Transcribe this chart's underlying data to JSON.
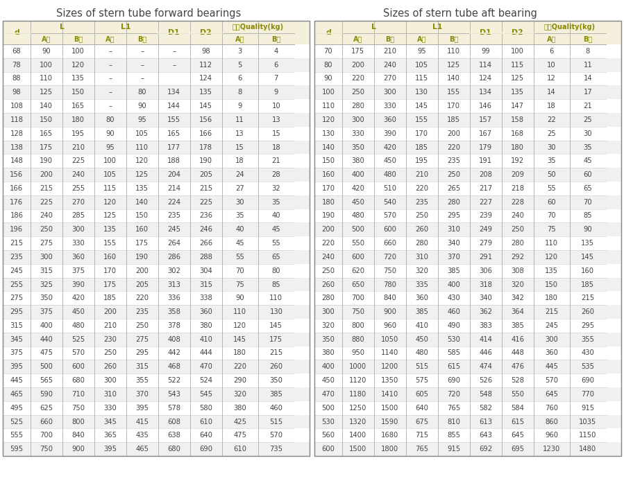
{
  "title_left": "Sizes of stern tube forward bearings",
  "title_right": "Sizes of stern tube aft bearing",
  "forward_data": [
    [
      "68",
      "90",
      "100",
      "–",
      "–",
      "–",
      "98",
      "3",
      "4"
    ],
    [
      "78",
      "100",
      "120",
      "–",
      "–",
      "–",
      "112",
      "5",
      "6"
    ],
    [
      "88",
      "110",
      "135",
      "–",
      "–",
      "",
      "124",
      "6",
      "7"
    ],
    [
      "98",
      "125",
      "150",
      "–",
      "80",
      "134",
      "135",
      "8",
      "9"
    ],
    [
      "108",
      "140",
      "165",
      "–",
      "90",
      "144",
      "145",
      "9",
      "10"
    ],
    [
      "118",
      "150",
      "180",
      "80",
      "95",
      "155",
      "156",
      "11",
      "13"
    ],
    [
      "128",
      "165",
      "195",
      "90",
      "105",
      "165",
      "166",
      "13",
      "15"
    ],
    [
      "138",
      "175",
      "210",
      "95",
      "110",
      "177",
      "178",
      "15",
      "18"
    ],
    [
      "148",
      "190",
      "225",
      "100",
      "120",
      "188",
      "190",
      "18",
      "21"
    ],
    [
      "156",
      "200",
      "240",
      "105",
      "125",
      "204",
      "205",
      "24",
      "28"
    ],
    [
      "166",
      "215",
      "255",
      "115",
      "135",
      "214",
      "215",
      "27",
      "32"
    ],
    [
      "176",
      "225",
      "270",
      "120",
      "140",
      "224",
      "225",
      "30",
      "35"
    ],
    [
      "186",
      "240",
      "285",
      "125",
      "150",
      "235",
      "236",
      "35",
      "40"
    ],
    [
      "196",
      "250",
      "300",
      "135",
      "160",
      "245",
      "246",
      "40",
      "45"
    ],
    [
      "215",
      "275",
      "330",
      "155",
      "175",
      "264",
      "266",
      "45",
      "55"
    ],
    [
      "235",
      "300",
      "360",
      "160",
      "190",
      "286",
      "288",
      "55",
      "65"
    ],
    [
      "245",
      "315",
      "375",
      "170",
      "200",
      "302",
      "304",
      "70",
      "80"
    ],
    [
      "255",
      "325",
      "390",
      "175",
      "205",
      "313",
      "315",
      "75",
      "85"
    ],
    [
      "275",
      "350",
      "420",
      "185",
      "220",
      "336",
      "338",
      "90",
      "110"
    ],
    [
      "295",
      "375",
      "450",
      "200",
      "235",
      "358",
      "360",
      "110",
      "130"
    ],
    [
      "315",
      "400",
      "480",
      "210",
      "250",
      "378",
      "380",
      "120",
      "145"
    ],
    [
      "345",
      "440",
      "525",
      "230",
      "275",
      "408",
      "410",
      "145",
      "175"
    ],
    [
      "375",
      "475",
      "570",
      "250",
      "295",
      "442",
      "444",
      "180",
      "215"
    ],
    [
      "395",
      "500",
      "600",
      "260",
      "315",
      "468",
      "470",
      "220",
      "260"
    ],
    [
      "445",
      "565",
      "680",
      "300",
      "355",
      "522",
      "524",
      "290",
      "350"
    ],
    [
      "465",
      "590",
      "710",
      "310",
      "370",
      "543",
      "545",
      "320",
      "385"
    ],
    [
      "495",
      "625",
      "750",
      "330",
      "395",
      "578",
      "580",
      "380",
      "460"
    ],
    [
      "525",
      "660",
      "800",
      "345",
      "415",
      "608",
      "610",
      "425",
      "515"
    ],
    [
      "555",
      "700",
      "840",
      "365",
      "435",
      "638",
      "640",
      "475",
      "570"
    ],
    [
      "595",
      "750",
      "900",
      "395",
      "465",
      "680",
      "690",
      "610",
      "735"
    ]
  ],
  "aft_data": [
    [
      "70",
      "175",
      "210",
      "95",
      "110",
      "99",
      "100",
      "6",
      "8"
    ],
    [
      "80",
      "200",
      "240",
      "105",
      "125",
      "114",
      "115",
      "10",
      "11"
    ],
    [
      "90",
      "220",
      "270",
      "115",
      "140",
      "124",
      "125",
      "12",
      "14"
    ],
    [
      "100",
      "250",
      "300",
      "130",
      "155",
      "134",
      "135",
      "14",
      "17"
    ],
    [
      "110",
      "280",
      "330",
      "145",
      "170",
      "146",
      "147",
      "18",
      "21"
    ],
    [
      "120",
      "300",
      "360",
      "155",
      "185",
      "157",
      "158",
      "22",
      "25"
    ],
    [
      "130",
      "330",
      "390",
      "170",
      "200",
      "167",
      "168",
      "25",
      "30"
    ],
    [
      "140",
      "350",
      "420",
      "185",
      "220",
      "179",
      "180",
      "30",
      "35"
    ],
    [
      "150",
      "380",
      "450",
      "195",
      "235",
      "191",
      "192",
      "35",
      "45"
    ],
    [
      "160",
      "400",
      "480",
      "210",
      "250",
      "208",
      "209",
      "50",
      "60"
    ],
    [
      "170",
      "420",
      "510",
      "220",
      "265",
      "217",
      "218",
      "55",
      "65"
    ],
    [
      "180",
      "450",
      "540",
      "235",
      "280",
      "227",
      "228",
      "60",
      "70"
    ],
    [
      "190",
      "480",
      "570",
      "250",
      "295",
      "239",
      "240",
      "70",
      "85"
    ],
    [
      "200",
      "500",
      "600",
      "260",
      "310",
      "249",
      "250",
      "75",
      "90"
    ],
    [
      "220",
      "550",
      "660",
      "280",
      "340",
      "279",
      "280",
      "110",
      "135"
    ],
    [
      "240",
      "600",
      "720",
      "310",
      "370",
      "291",
      "292",
      "120",
      "145"
    ],
    [
      "250",
      "620",
      "750",
      "320",
      "385",
      "306",
      "308",
      "135",
      "160"
    ],
    [
      "260",
      "650",
      "780",
      "335",
      "400",
      "318",
      "320",
      "150",
      "185"
    ],
    [
      "280",
      "700",
      "840",
      "360",
      "430",
      "340",
      "342",
      "180",
      "215"
    ],
    [
      "300",
      "750",
      "900",
      "385",
      "460",
      "362",
      "364",
      "215",
      "260"
    ],
    [
      "320",
      "800",
      "960",
      "410",
      "490",
      "383",
      "385",
      "245",
      "295"
    ],
    [
      "350",
      "880",
      "1050",
      "450",
      "530",
      "414",
      "416",
      "300",
      "355"
    ],
    [
      "380",
      "950",
      "1140",
      "480",
      "585",
      "446",
      "448",
      "360",
      "430"
    ],
    [
      "400",
      "1000",
      "1200",
      "515",
      "615",
      "474",
      "476",
      "445",
      "535"
    ],
    [
      "450",
      "1120",
      "1350",
      "575",
      "690",
      "526",
      "528",
      "570",
      "690"
    ],
    [
      "470",
      "1180",
      "1410",
      "605",
      "720",
      "548",
      "550",
      "645",
      "770"
    ],
    [
      "500",
      "1250",
      "1500",
      "640",
      "765",
      "582",
      "584",
      "760",
      "915"
    ],
    [
      "530",
      "1320",
      "1590",
      "675",
      "810",
      "613",
      "615",
      "860",
      "1035"
    ],
    [
      "560",
      "1400",
      "1680",
      "715",
      "855",
      "643",
      "645",
      "960",
      "1150"
    ],
    [
      "600",
      "1500",
      "1800",
      "765",
      "915",
      "692",
      "695",
      "1230",
      "1480"
    ]
  ],
  "header_bg": "#f5f0dc",
  "border_color_outer": "#888888",
  "border_color_inner": "#aaaaaa",
  "border_color_data": "#cccccc",
  "text_color": "#333333",
  "title_color": "#444444",
  "header_text_color": "#888800",
  "data_text_color": "#444444",
  "font_size_data": 7.2,
  "font_size_header": 7.8,
  "font_size_subheader": 7.0,
  "font_size_title": 10.5,
  "row_bg_alt": "#f0f0f0",
  "row_bg_normal": "#ffffff"
}
